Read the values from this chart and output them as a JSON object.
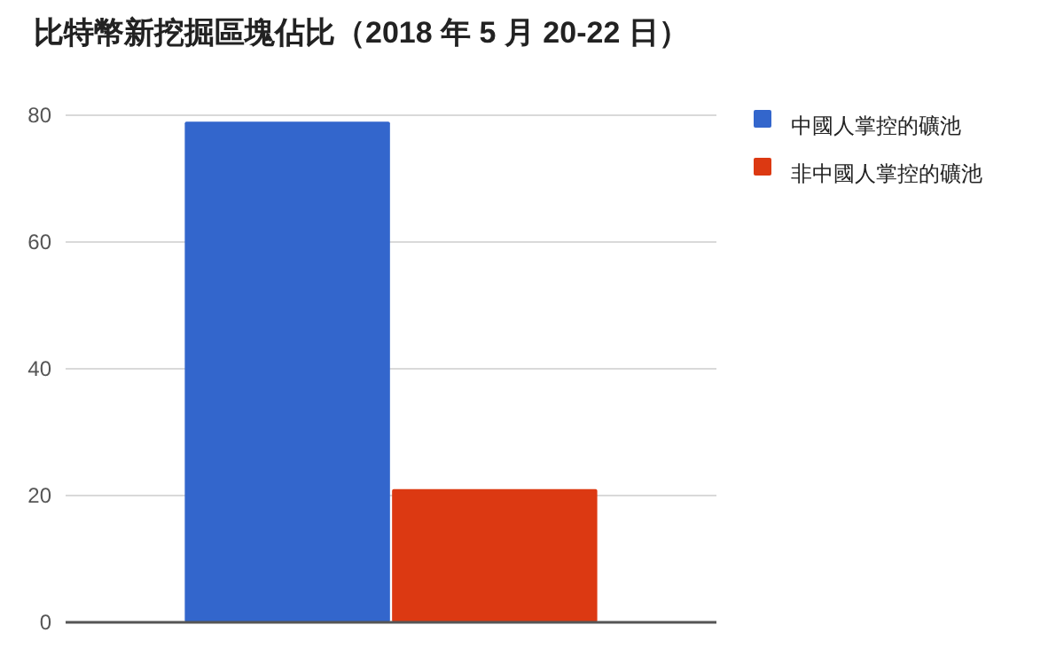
{
  "chart_data": {
    "type": "bar",
    "title": "比特幣新挖掘區塊佔比（2018 年 5 月 20-22 日）",
    "categories": [
      null
    ],
    "series": [
      {
        "name": "中國人掌控的礦池",
        "color": "#3366cc",
        "values": [
          79
        ]
      },
      {
        "name": "非中國人掌控的礦池",
        "color": "#dc3912",
        "values": [
          21
        ]
      }
    ],
    "ylim": [
      0,
      80
    ],
    "yticks": [
      0,
      20,
      40,
      60,
      80
    ],
    "grid": "y",
    "legend": "top right"
  }
}
